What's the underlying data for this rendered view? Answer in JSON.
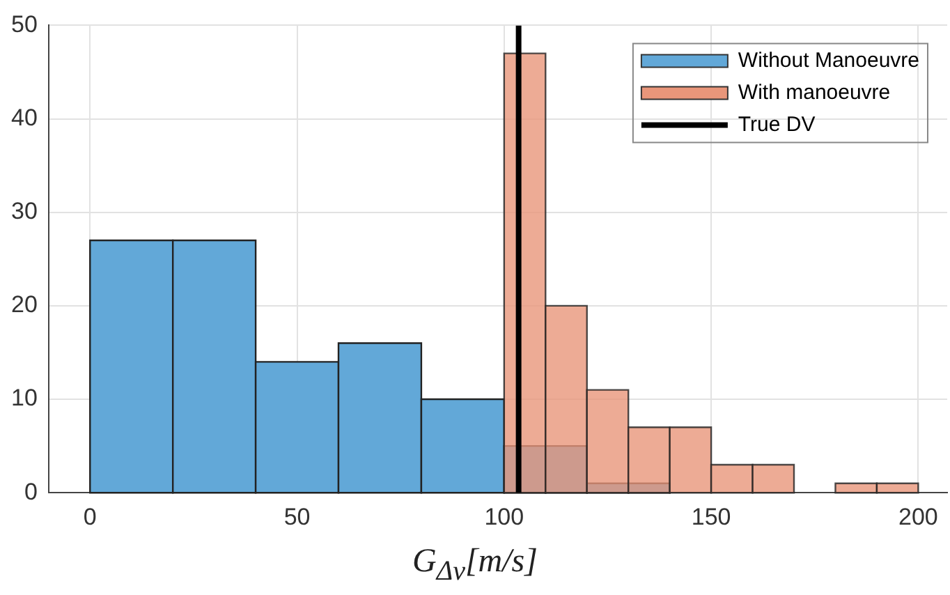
{
  "chart_data": {
    "type": "histogram",
    "xlabel": "G$_{Δv}$[m/s]",
    "bins": [
      0,
      20,
      40,
      60,
      80,
      100,
      110,
      120,
      130,
      140,
      150,
      160,
      170,
      180,
      190,
      200
    ],
    "series": [
      {
        "name": "Without Manoeuvre",
        "color": "#62a8d8",
        "values": [
          27,
          27,
          14,
          16,
          10,
          5,
          5,
          1,
          1,
          0,
          0,
          0,
          0,
          0,
          0
        ]
      },
      {
        "name": "With manoeuvre",
        "color": "#e9967a",
        "values": [
          0,
          0,
          0,
          0,
          0,
          47,
          20,
          11,
          7,
          7,
          3,
          3,
          0,
          1,
          1
        ]
      },
      {
        "name": "True DV",
        "type": "line",
        "color": "#000000",
        "x": [
          103.5,
          103.5
        ],
        "values": [
          0,
          50
        ]
      }
    ],
    "xlim": [
      -10,
      207
    ],
    "xticks": [
      0,
      50,
      100,
      150,
      200
    ],
    "ylim": [
      0,
      50
    ],
    "yticks": [
      0,
      10,
      20,
      30,
      40,
      50
    ],
    "grid": true,
    "legend": "top right"
  }
}
